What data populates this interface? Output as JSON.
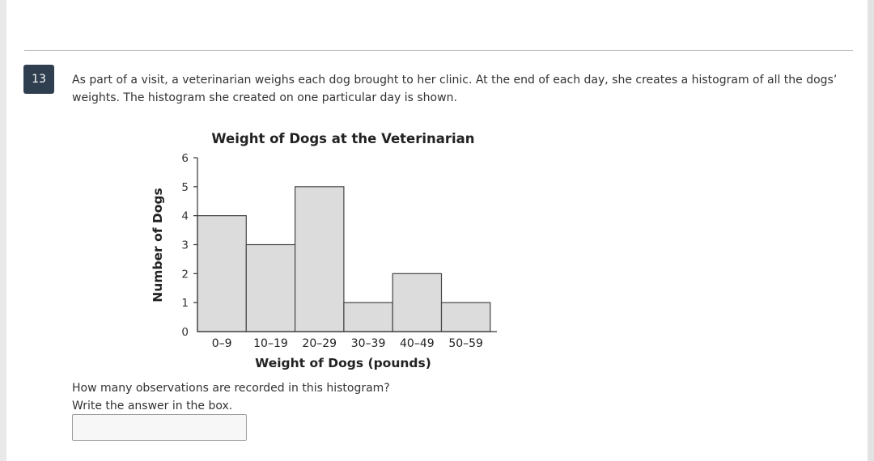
{
  "question": {
    "number": "13",
    "prompt_line1": "As part of a visit, a veterinarian weighs each dog brought to her clinic. At the end of each day, she creates a histogram of all the dogs’",
    "prompt_line2": "weights. The histogram she created on one particular day is shown.",
    "ask": "How many observations are recorded in this histogram?",
    "instruction": "Write the answer in the box."
  },
  "chart_data": {
    "type": "bar",
    "title": "Weight of Dogs at the Veterinarian",
    "xlabel": "Weight of Dogs (pounds)",
    "ylabel": "Number of Dogs",
    "categories": [
      "0–9",
      "10–19",
      "20–29",
      "30–39",
      "40–49",
      "50–59"
    ],
    "values": [
      4,
      3,
      5,
      1,
      2,
      1
    ],
    "ylim": [
      0,
      6
    ],
    "yticks": [
      "0",
      "1",
      "2",
      "3",
      "4",
      "5",
      "6"
    ],
    "grid": false,
    "bar_color": "#dcdcdc",
    "edge_color": "#444444"
  },
  "answer": {
    "value": ""
  }
}
